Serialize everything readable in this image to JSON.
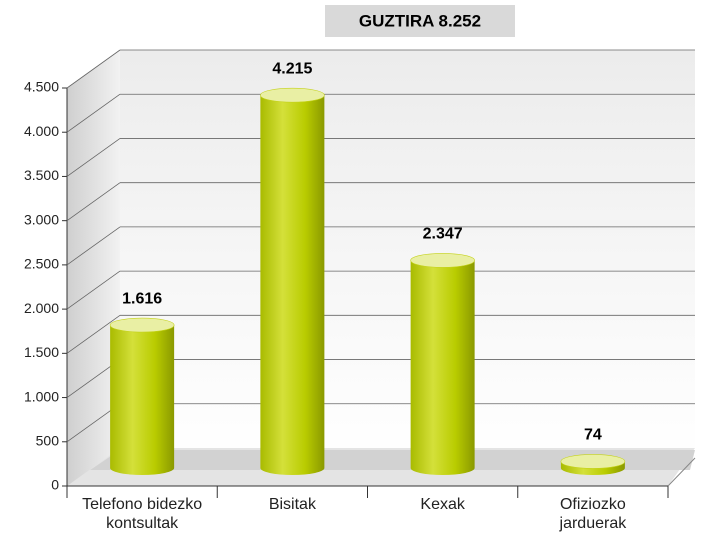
{
  "chart_data": {
    "type": "bar",
    "title": "GUZTIRA 8.252",
    "categories": [
      "Telefono bidezko kontsultak",
      "Bisitak",
      "Kexak",
      "Ofiziozko jarduerak"
    ],
    "values": [
      1616,
      4215,
      2347,
      74
    ],
    "value_labels": [
      "1.616",
      "4.215",
      "2.347",
      "74"
    ],
    "color": "#b9cc00",
    "ylim": [
      0,
      4500
    ],
    "yticks": [
      0,
      500,
      {
        "value": 1000,
        "label": "1.000"
      },
      {
        "value": 1500,
        "label": "1.500"
      },
      {
        "value": 2000,
        "label": "2.000"
      },
      {
        "value": 2500,
        "label": "2.500"
      },
      {
        "value": 3000,
        "label": "3.000"
      },
      {
        "value": 3500,
        "label": "3.500"
      },
      {
        "value": 4000,
        "label": "4.000"
      },
      {
        "value": 4500,
        "label": "4.500"
      }
    ],
    "grid": true
  }
}
